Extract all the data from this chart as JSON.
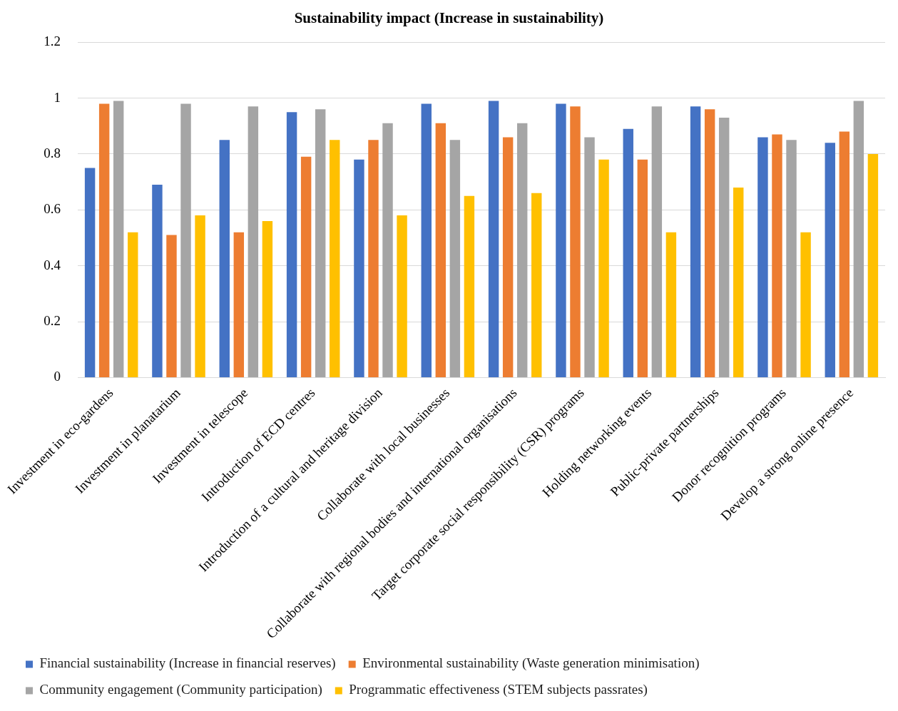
{
  "chart_data": {
    "type": "bar",
    "title": "Sustainability impact (Increase in sustainability)",
    "categories": [
      "Investment in eco-gardens",
      "Investment in planatarium",
      "Investment in telescope",
      "Introduction of ECD centres",
      "Introduction of a cultural and heritage division",
      "Collaborate with local businesses",
      "Collaborate with regional bodies and international organisations",
      "Target corporate social responsibility (CSR) programs",
      "Holding networking events",
      "Public-private partnerships",
      "Donor recognition programs",
      "Develop a strong online presence"
    ],
    "series": [
      {
        "name": "Financial sustainability (Increase in financial reserves)",
        "color": "#4472c4",
        "values": [
          0.75,
          0.69,
          0.85,
          0.95,
          0.78,
          0.98,
          0.99,
          0.98,
          0.89,
          0.97,
          0.86,
          0.84
        ]
      },
      {
        "name": "Environmental sustainability (Waste generation minimisation)",
        "color": "#ed7d31",
        "values": [
          0.98,
          0.51,
          0.52,
          0.79,
          0.85,
          0.91,
          0.86,
          0.97,
          0.78,
          0.96,
          0.87,
          0.88
        ]
      },
      {
        "name": "Community engagement (Community participation)",
        "color": "#a5a5a5",
        "values": [
          0.99,
          0.98,
          0.97,
          0.96,
          0.91,
          0.85,
          0.91,
          0.86,
          0.97,
          0.93,
          0.85,
          0.99
        ]
      },
      {
        "name": "Programmatic effectiveness (STEM subjects passrates)",
        "color": "#ffc000",
        "values": [
          0.52,
          0.58,
          0.56,
          0.85,
          0.58,
          0.65,
          0.66,
          0.78,
          0.52,
          0.68,
          0.52,
          0.8
        ]
      }
    ],
    "ylim": [
      0,
      1.2
    ],
    "yticks": [
      0,
      0.2,
      0.4,
      0.6,
      0.8,
      1,
      1.2
    ],
    "grid": "y",
    "legend": "bottom"
  }
}
